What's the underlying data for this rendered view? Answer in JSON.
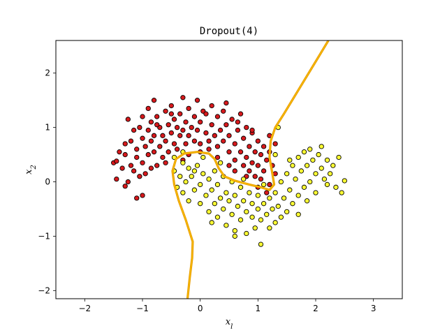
{
  "chart_data": {
    "type": "scatter",
    "title": "Dropout(4)",
    "xlabel": "x_l",
    "ylabel": "x_2",
    "xlim": [
      -2.5,
      3.5
    ],
    "ylim": [
      -2.15,
      2.6
    ],
    "xticks": [
      -2,
      -1,
      0,
      1,
      2,
      3
    ],
    "yticks": [
      -2,
      -1,
      0,
      1,
      2
    ],
    "xtick_labels": [
      "−2",
      "−1",
      "0",
      "1",
      "2",
      "3"
    ],
    "ytick_labels": [
      "−2",
      "−1",
      "0",
      "1",
      "2"
    ],
    "grid": false,
    "series": [
      {
        "class": 0,
        "color": "#d7191c",
        "points": [
          [
            -1.5,
            0.35
          ],
          [
            -1.45,
            0.38
          ],
          [
            -1.45,
            0.05
          ],
          [
            -1.4,
            0.55
          ],
          [
            -1.35,
            0.25
          ],
          [
            -1.3,
            0.5
          ],
          [
            -1.3,
            -0.08
          ],
          [
            -1.25,
            1.15
          ],
          [
            -1.25,
            0.0
          ],
          [
            -1.2,
            0.75
          ],
          [
            -1.2,
            0.3
          ],
          [
            -1.15,
            0.95
          ],
          [
            -1.15,
            0.2
          ],
          [
            -1.1,
            0.6
          ],
          [
            -1.1,
            0.45
          ],
          [
            -1.1,
            -0.3
          ],
          [
            -1.05,
            1.0
          ],
          [
            -1.05,
            0.1
          ],
          [
            -1.0,
            1.2
          ],
          [
            -1.0,
            0.8
          ],
          [
            -1.0,
            0.35
          ],
          [
            -1.0,
            -0.25
          ],
          [
            -0.95,
            0.65
          ],
          [
            -0.95,
            0.15
          ],
          [
            -0.9,
            1.35
          ],
          [
            -0.9,
            0.95
          ],
          [
            -0.9,
            0.5
          ],
          [
            -0.85,
            1.1
          ],
          [
            -0.85,
            0.75
          ],
          [
            -0.85,
            0.25
          ],
          [
            -0.8,
            0.85
          ],
          [
            -0.8,
            0.55
          ],
          [
            -0.8,
            1.5
          ],
          [
            -0.75,
            1.2
          ],
          [
            -0.75,
            0.3
          ],
          [
            -0.7,
            1.0
          ],
          [
            -0.7,
            0.65
          ],
          [
            -0.65,
            0.85
          ],
          [
            -0.65,
            0.45
          ],
          [
            -0.6,
            1.3
          ],
          [
            -0.6,
            0.75
          ],
          [
            -0.55,
            1.05
          ],
          [
            -0.55,
            0.55
          ],
          [
            -0.5,
            0.9
          ],
          [
            -0.5,
            1.4
          ],
          [
            -0.45,
            0.7
          ],
          [
            -0.45,
            1.15
          ],
          [
            -0.4,
            1.0
          ],
          [
            -0.4,
            0.6
          ],
          [
            -0.35,
            1.25
          ],
          [
            -0.35,
            0.85
          ],
          [
            -0.3,
            1.55
          ],
          [
            -0.3,
            0.95
          ],
          [
            -0.25,
            0.7
          ],
          [
            -0.25,
            1.1
          ],
          [
            -0.2,
            1.35
          ],
          [
            -0.2,
            0.85
          ],
          [
            -0.15,
            1.0
          ],
          [
            -0.1,
            0.75
          ],
          [
            -0.1,
            1.2
          ],
          [
            -0.05,
            0.95
          ],
          [
            0.0,
            1.1
          ],
          [
            0.0,
            0.7
          ],
          [
            0.05,
            1.3
          ],
          [
            0.1,
            0.9
          ],
          [
            0.1,
            1.25
          ],
          [
            0.15,
            0.75
          ],
          [
            0.2,
            1.05
          ],
          [
            0.2,
            1.4
          ],
          [
            0.25,
            0.85
          ],
          [
            0.3,
            1.2
          ],
          [
            0.3,
            0.65
          ],
          [
            0.35,
            0.95
          ],
          [
            0.4,
            1.3
          ],
          [
            0.4,
            0.75
          ],
          [
            0.45,
            1.05
          ],
          [
            0.5,
            0.55
          ],
          [
            0.5,
            0.85
          ],
          [
            0.55,
            1.15
          ],
          [
            0.6,
            0.7
          ],
          [
            0.6,
            0.4
          ],
          [
            0.65,
            0.95
          ],
          [
            0.7,
            1.25
          ],
          [
            0.7,
            0.55
          ],
          [
            0.75,
            0.8
          ],
          [
            0.75,
            0.3
          ],
          [
            0.8,
            1.0
          ],
          [
            0.8,
            0.45
          ],
          [
            0.85,
            0.65
          ],
          [
            0.85,
            0.2
          ],
          [
            0.9,
            0.9
          ],
          [
            0.9,
            0.35
          ],
          [
            0.95,
            0.55
          ],
          [
            0.95,
            0.1
          ],
          [
            1.0,
            0.75
          ],
          [
            1.0,
            0.3
          ],
          [
            1.05,
            0.5
          ],
          [
            1.05,
            0.05
          ],
          [
            1.1,
            0.65
          ],
          [
            1.1,
            0.2
          ],
          [
            1.15,
            0.4
          ],
          [
            1.2,
            0.55
          ],
          [
            1.2,
            -0.05
          ],
          [
            1.25,
            0.3
          ],
          [
            1.3,
            0.7
          ],
          [
            1.3,
            0.15
          ],
          [
            -0.6,
            0.35
          ],
          [
            -0.2,
            0.5
          ],
          [
            0.0,
            0.55
          ],
          [
            0.3,
            0.45
          ],
          [
            0.6,
            0.2
          ],
          [
            0.8,
            0.1
          ],
          [
            1.0,
            -0.1
          ],
          [
            1.15,
            -0.2
          ],
          [
            -0.05,
            1.5
          ],
          [
            0.45,
            1.45
          ],
          [
            -0.5,
            1.25
          ],
          [
            -0.75,
            1.05
          ],
          [
            -1.3,
            0.7
          ],
          [
            0.65,
            1.1
          ],
          [
            0.9,
            0.95
          ],
          [
            1.2,
            0.85
          ],
          [
            0.15,
            0.6
          ],
          [
            -0.3,
            0.4
          ],
          [
            0.5,
            0.3
          ]
        ]
      },
      {
        "class": 1,
        "color": "#ffff33",
        "points": [
          [
            -0.45,
            0.45
          ],
          [
            -0.45,
            0.2
          ],
          [
            -0.4,
            -0.1
          ],
          [
            -0.35,
            0.1
          ],
          [
            -0.3,
            0.35
          ],
          [
            -0.3,
            -0.2
          ],
          [
            -0.25,
            0.0
          ],
          [
            -0.2,
            0.25
          ],
          [
            -0.2,
            -0.35
          ],
          [
            -0.15,
            0.1
          ],
          [
            -0.1,
            -0.15
          ],
          [
            -0.05,
            0.3
          ],
          [
            0.0,
            -0.05
          ],
          [
            0.0,
            -0.4
          ],
          [
            0.05,
            0.15
          ],
          [
            0.1,
            -0.25
          ],
          [
            0.15,
            0.05
          ],
          [
            0.15,
            -0.55
          ],
          [
            0.2,
            -0.15
          ],
          [
            0.25,
            0.2
          ],
          [
            0.25,
            -0.4
          ],
          [
            0.3,
            -0.05
          ],
          [
            0.3,
            -0.65
          ],
          [
            0.35,
            -0.3
          ],
          [
            0.4,
            0.1
          ],
          [
            0.4,
            -0.5
          ],
          [
            0.45,
            -0.2
          ],
          [
            0.45,
            -0.8
          ],
          [
            0.5,
            -0.35
          ],
          [
            0.55,
            0.0
          ],
          [
            0.55,
            -0.6
          ],
          [
            0.6,
            -0.25
          ],
          [
            0.6,
            -0.9
          ],
          [
            0.65,
            -0.45
          ],
          [
            0.7,
            -0.1
          ],
          [
            0.7,
            -0.7
          ],
          [
            0.75,
            -0.35
          ],
          [
            0.8,
            -0.55
          ],
          [
            0.8,
            -0.95
          ],
          [
            0.85,
            -0.2
          ],
          [
            0.9,
            -0.65
          ],
          [
            0.9,
            -0.4
          ],
          [
            0.95,
            -0.85
          ],
          [
            1.0,
            -0.5
          ],
          [
            1.0,
            -0.25
          ],
          [
            1.05,
            -1.15
          ],
          [
            1.05,
            -0.7
          ],
          [
            1.1,
            -0.4
          ],
          [
            1.15,
            -0.6
          ],
          [
            1.2,
            -0.85
          ],
          [
            1.2,
            -0.3
          ],
          [
            1.25,
            -0.5
          ],
          [
            1.3,
            -0.75
          ],
          [
            1.3,
            -0.2
          ],
          [
            1.35,
            -0.45
          ],
          [
            1.4,
            -0.65
          ],
          [
            1.4,
            0.0
          ],
          [
            1.45,
            -0.3
          ],
          [
            1.5,
            -0.55
          ],
          [
            1.5,
            0.15
          ],
          [
            1.55,
            -0.15
          ],
          [
            1.6,
            -0.4
          ],
          [
            1.6,
            0.3
          ],
          [
            1.65,
            0.05
          ],
          [
            1.7,
            -0.25
          ],
          [
            1.7,
            0.45
          ],
          [
            1.75,
            0.2
          ],
          [
            1.8,
            -0.1
          ],
          [
            1.8,
            0.55
          ],
          [
            1.85,
            0.3
          ],
          [
            1.9,
            0.0
          ],
          [
            1.9,
            0.6
          ],
          [
            1.95,
            0.4
          ],
          [
            2.0,
            0.15
          ],
          [
            2.0,
            -0.2
          ],
          [
            2.05,
            0.5
          ],
          [
            2.1,
            0.25
          ],
          [
            2.1,
            0.65
          ],
          [
            2.15,
            0.05
          ],
          [
            2.2,
            0.4
          ],
          [
            2.25,
            0.15
          ],
          [
            2.3,
            0.3
          ],
          [
            2.35,
            -0.1
          ],
          [
            2.4,
            0.45
          ],
          [
            2.45,
            -0.2
          ],
          [
            2.5,
            0.02
          ],
          [
            1.35,
            1.0
          ],
          [
            -0.3,
            0.55
          ],
          [
            0.05,
            0.45
          ],
          [
            0.35,
            0.35
          ],
          [
            0.75,
            0.05
          ],
          [
            1.1,
            -0.05
          ],
          [
            1.7,
            -0.6
          ],
          [
            1.3,
            0.5
          ],
          [
            0.6,
            -1.0
          ],
          [
            0.2,
            -0.75
          ],
          [
            -0.1,
            0.2
          ],
          [
            1.85,
            -0.35
          ],
          [
            2.2,
            -0.05
          ],
          [
            1.55,
            0.4
          ]
        ]
      }
    ],
    "boundary_color": "#f5b800",
    "boundaries": [
      [
        [
          -0.22,
          -2.15
        ],
        [
          -0.18,
          -1.75
        ],
        [
          -0.14,
          -1.4
        ],
        [
          -0.13,
          -1.1
        ],
        [
          -0.25,
          -0.7
        ],
        [
          -0.37,
          -0.35
        ],
        [
          -0.45,
          -0.05
        ],
        [
          -0.48,
          0.2
        ],
        [
          -0.42,
          0.42
        ],
        [
          -0.28,
          0.52
        ],
        [
          -0.05,
          0.55
        ],
        [
          0.15,
          0.52
        ],
        [
          0.25,
          0.42
        ],
        [
          0.32,
          0.25
        ],
        [
          0.42,
          0.1
        ],
        [
          0.6,
          0.02
        ],
        [
          0.85,
          -0.05
        ],
        [
          1.05,
          -0.1
        ],
        [
          1.2,
          -0.15
        ],
        [
          1.28,
          -0.05
        ],
        [
          1.25,
          0.15
        ],
        [
          1.2,
          0.45
        ],
        [
          1.22,
          0.75
        ],
        [
          1.3,
          1.0
        ],
        [
          1.45,
          1.25
        ],
        [
          1.65,
          1.6
        ],
        [
          1.85,
          1.95
        ],
        [
          2.05,
          2.3
        ],
        [
          2.22,
          2.6
        ]
      ]
    ]
  }
}
